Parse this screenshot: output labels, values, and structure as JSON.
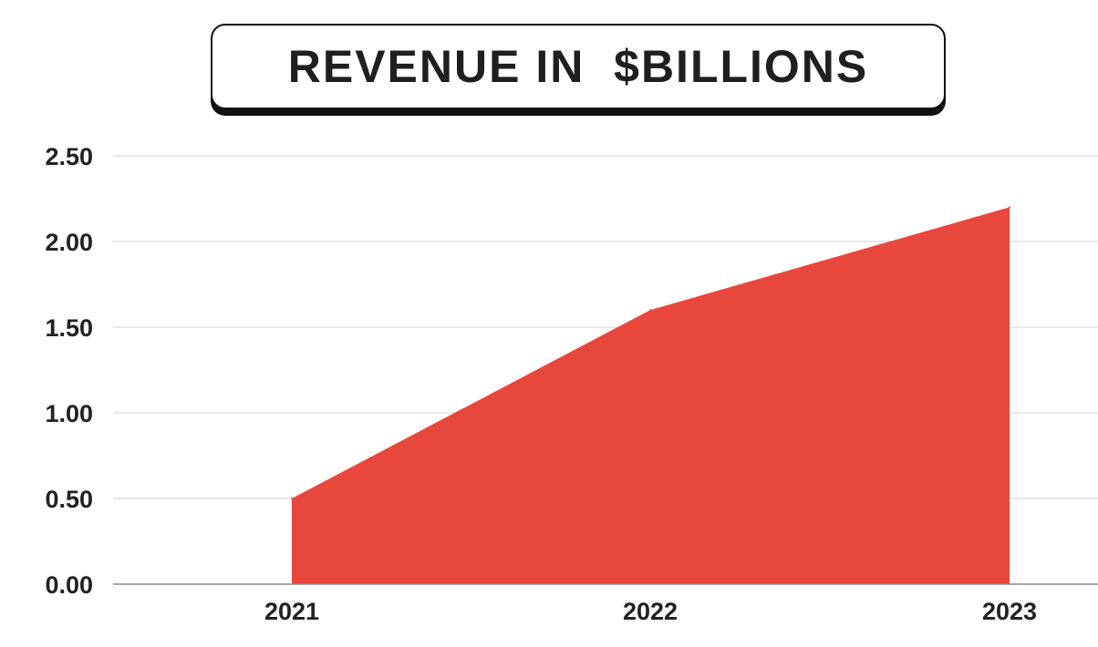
{
  "chart_data": {
    "type": "area",
    "title": "REVENUE IN  $BILLIONS",
    "categories": [
      "2021",
      "2022",
      "2023"
    ],
    "values": [
      0.5,
      1.6,
      2.2
    ],
    "ylim": [
      0,
      2.5
    ],
    "yticks": [
      "0.00",
      "0.50",
      "1.00",
      "1.50",
      "2.00",
      "2.50"
    ],
    "grid": true,
    "legend": "none",
    "colors": {
      "area": "#e8473d",
      "grid": "#d0d0d0",
      "axis": "#888888"
    }
  }
}
